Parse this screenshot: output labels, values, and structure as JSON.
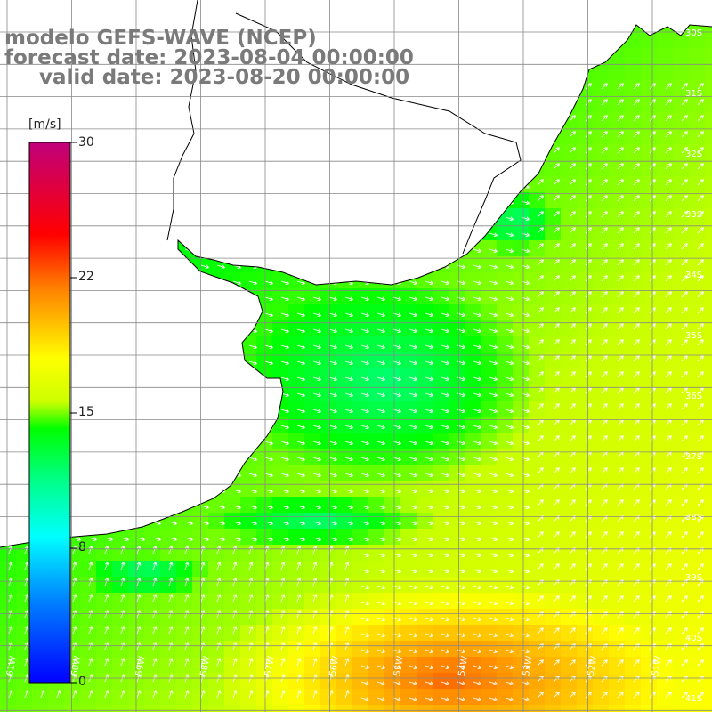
{
  "title": {
    "line1": "modelo GEFS-WAVE (NCEP)",
    "line2": "forecast date: 2023-08-04 00:00:00",
    "line3": "valid date: 2023-08-20 00:00:00"
  },
  "colorbar": {
    "unit": "[m/s]",
    "ticks": [
      "30",
      "22",
      "15",
      "8",
      "0"
    ],
    "min": 0,
    "max": 30
  },
  "lon_labels": [
    "61W",
    "60W",
    "59W",
    "58W",
    "57W",
    "56W",
    "55W",
    "54W",
    "53W",
    "52W",
    "51W"
  ],
  "lat_labels": [
    "30S",
    "31S",
    "32S",
    "33S",
    "34S",
    "35S",
    "36S",
    "37S",
    "38S",
    "39S",
    "40S",
    "41S"
  ],
  "colors": {
    "land": "#ffffff",
    "grid": "#888888",
    "coast": "#000000",
    "title": "#7a7a7a",
    "arrows": "#ffffff"
  }
}
